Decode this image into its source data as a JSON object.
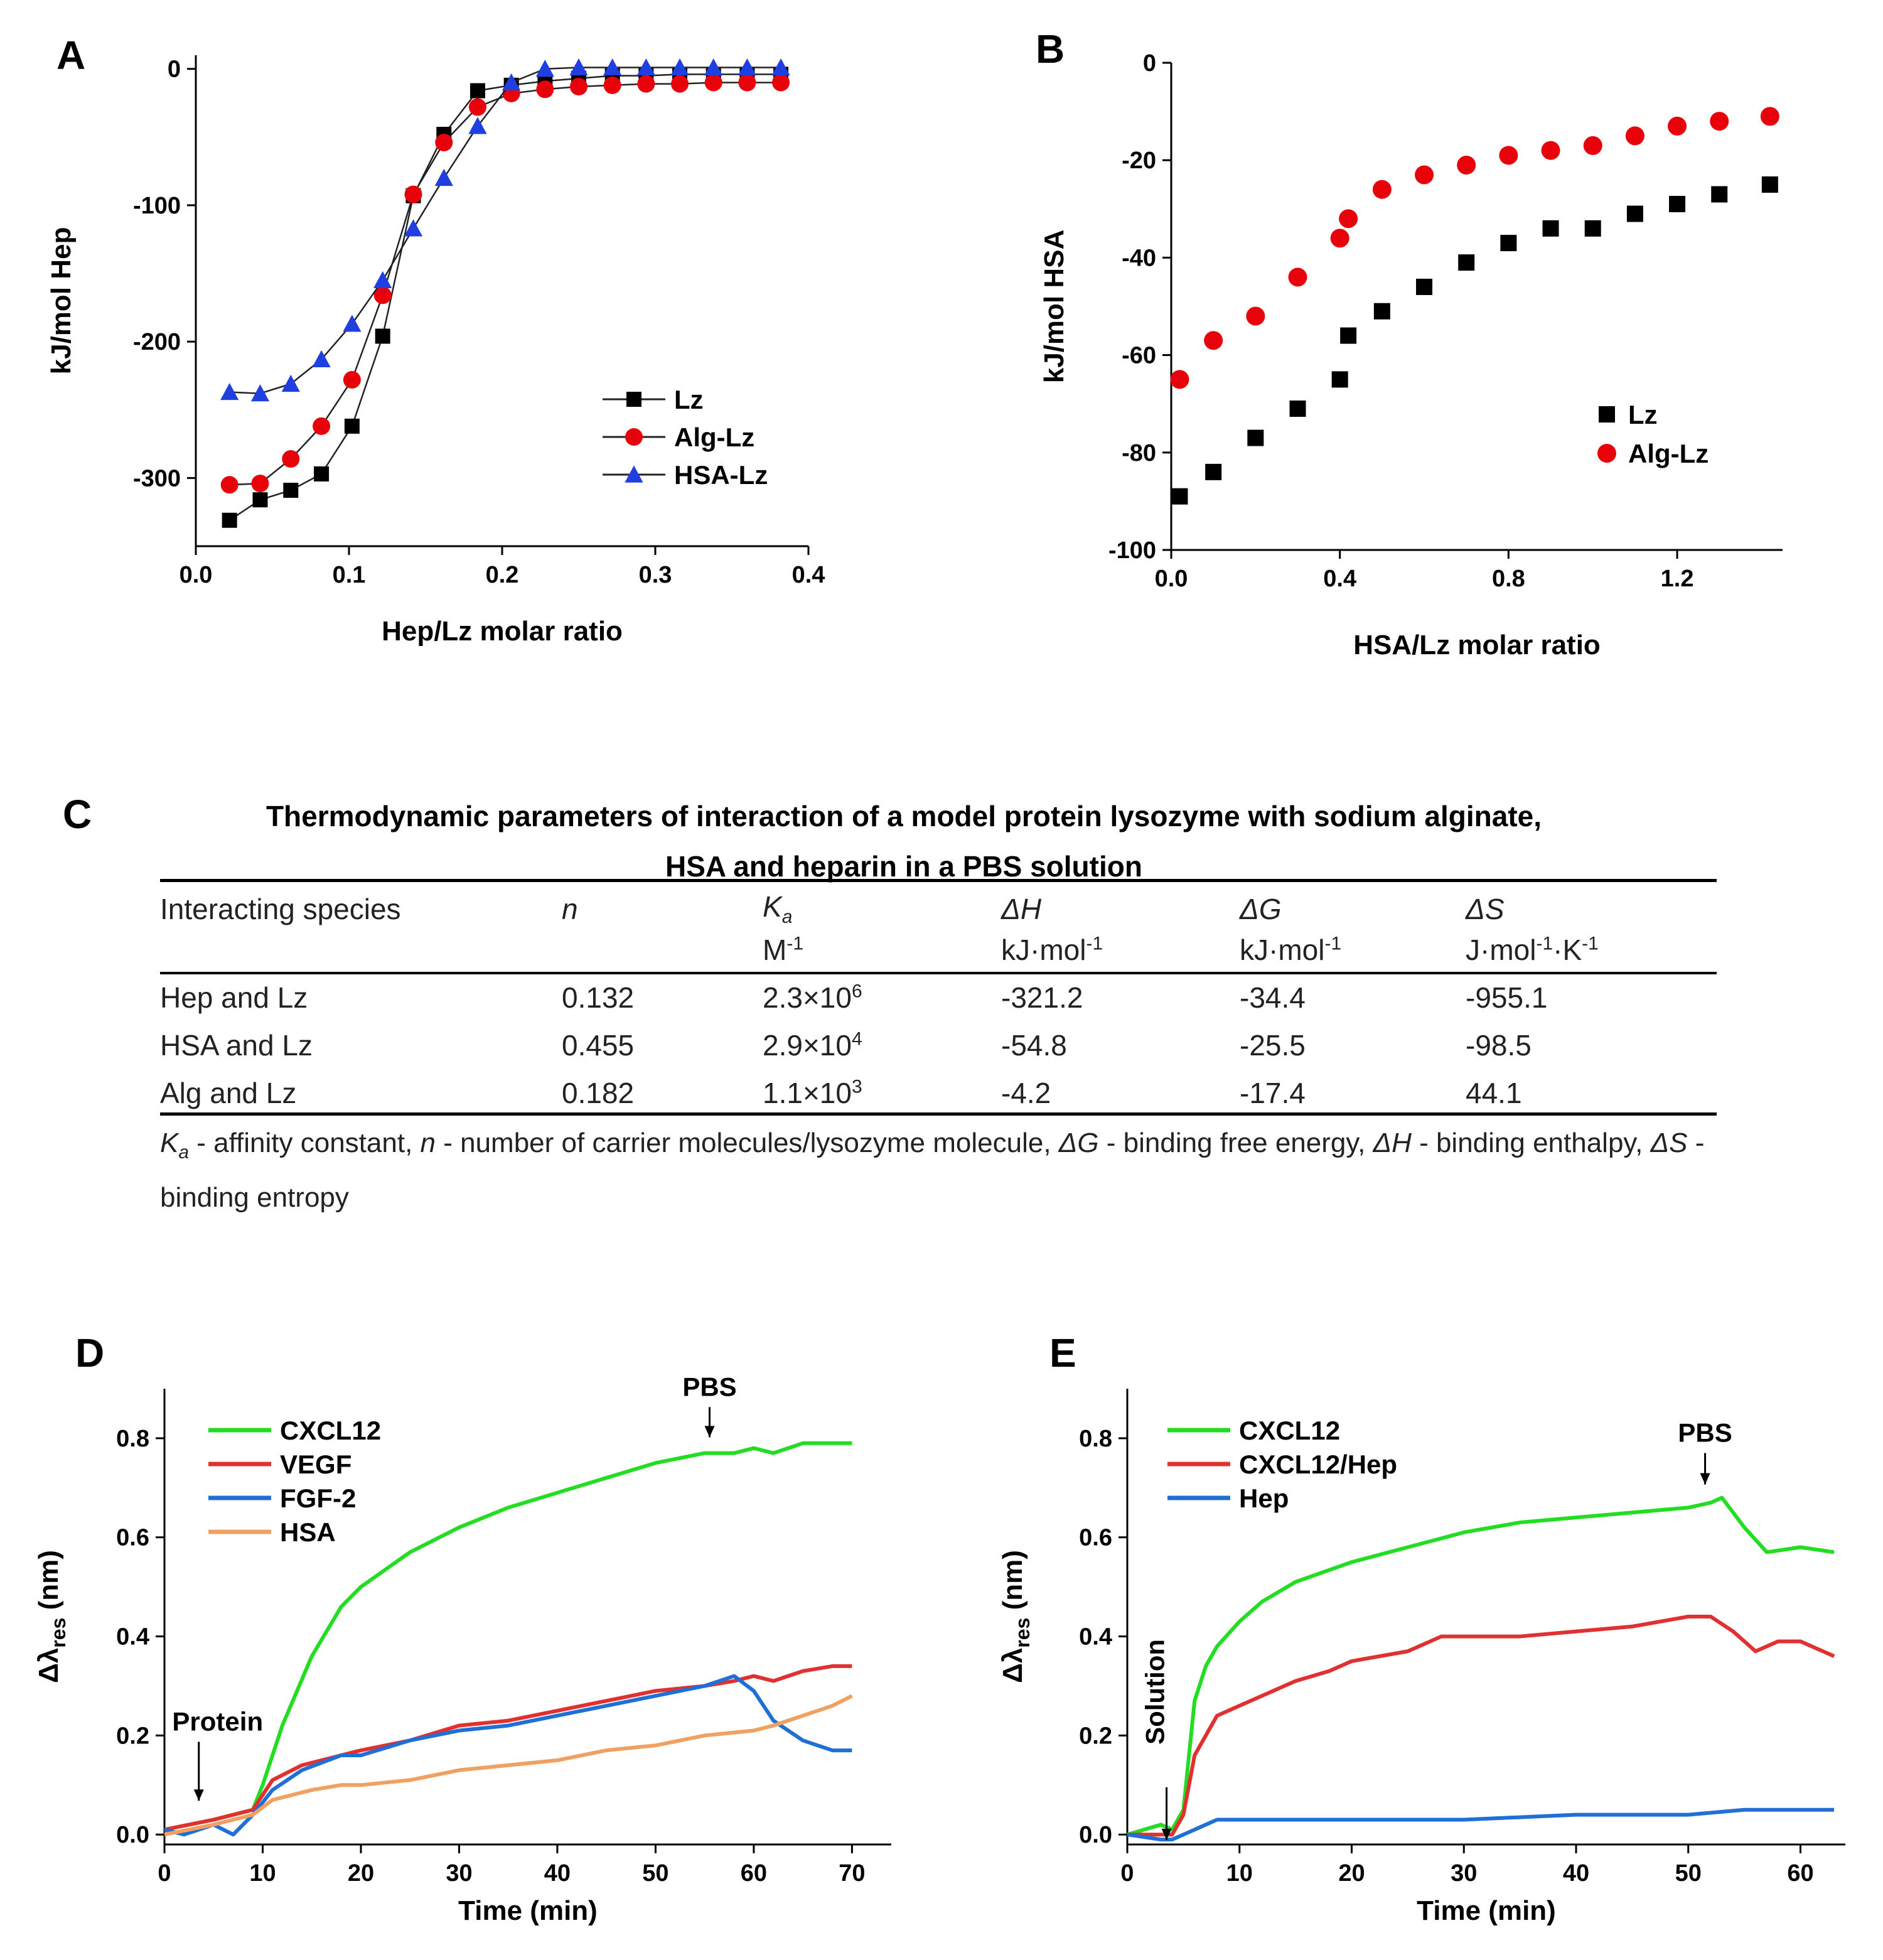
{
  "chart_data": [
    {
      "panel": "A",
      "type": "line",
      "xlabel": "Hep/Lz molar ratio",
      "ylabel": "kJ/mol Hep",
      "xlim": [
        0,
        0.4
      ],
      "ylim": [
        -350,
        10
      ],
      "xticks": [
        0.0,
        0.1,
        0.2,
        0.3,
        0.4
      ],
      "xtick_labels": [
        "0.0",
        "0.1",
        "0.2",
        "0.3",
        "0.4"
      ],
      "yticks": [
        0,
        -100,
        -200,
        -300
      ],
      "ytick_labels": [
        "0",
        "-100",
        "-200",
        "-300"
      ],
      "legend_position": "center-right",
      "series": [
        {
          "name": "Lz",
          "color": "#000000",
          "marker": "square",
          "x": [
            0.022,
            0.042,
            0.062,
            0.082,
            0.102,
            0.122,
            0.142,
            0.162,
            0.184,
            0.206,
            0.228,
            0.25,
            0.272,
            0.294,
            0.316,
            0.338,
            0.36,
            0.382
          ],
          "y": [
            -331,
            -316,
            -309,
            -297,
            -262,
            -196,
            -93,
            -48,
            -16,
            -12,
            -9,
            -7,
            -5,
            -5,
            -4,
            -4,
            -4,
            -4
          ]
        },
        {
          "name": "Alg-Lz",
          "color": "#e8000b",
          "marker": "circle",
          "x": [
            0.022,
            0.042,
            0.062,
            0.082,
            0.102,
            0.122,
            0.142,
            0.162,
            0.184,
            0.206,
            0.228,
            0.25,
            0.272,
            0.294,
            0.316,
            0.338,
            0.36,
            0.382
          ],
          "y": [
            -305,
            -304,
            -286,
            -262,
            -228,
            -166,
            -92,
            -54,
            -28,
            -18,
            -15,
            -13,
            -12,
            -11,
            -11,
            -10,
            -10,
            -10
          ]
        },
        {
          "name": "HSA-Lz",
          "color": "#1f3fe0",
          "marker": "triangle",
          "x": [
            0.022,
            0.042,
            0.062,
            0.082,
            0.102,
            0.122,
            0.142,
            0.162,
            0.184,
            0.206,
            0.228,
            0.25,
            0.272,
            0.294,
            0.316,
            0.338,
            0.36,
            0.382
          ],
          "y": [
            -237,
            -238,
            -231,
            -213,
            -187,
            -155,
            -117,
            -80,
            -42,
            -10,
            0,
            1,
            1,
            1,
            1,
            1,
            1,
            1
          ]
        }
      ]
    },
    {
      "panel": "B",
      "type": "scatter",
      "xlabel": "HSA/Lz molar ratio",
      "ylabel": "kJ/mol HSA",
      "xlim": [
        0,
        1.45
      ],
      "ylim": [
        -100,
        0
      ],
      "xticks": [
        0.0,
        0.4,
        0.8,
        1.2
      ],
      "xtick_labels": [
        "0.0",
        "0.4",
        "0.8",
        "1.2"
      ],
      "yticks": [
        0,
        -20,
        -40,
        -60,
        -80,
        -100
      ],
      "ytick_labels": [
        "0",
        "-20",
        "-40",
        "-60",
        "-80",
        "-100"
      ],
      "legend_position": "lower-right",
      "series": [
        {
          "name": "Lz",
          "color": "#000000",
          "marker": "square",
          "x": [
            0.02,
            0.1,
            0.2,
            0.3,
            0.4,
            0.42,
            0.5,
            0.6,
            0.7,
            0.8,
            0.9,
            1.0,
            1.1,
            1.2,
            1.3,
            1.42
          ],
          "y": [
            -89,
            -84,
            -77,
            -71,
            -65,
            -56,
            -51,
            -46,
            -41,
            -37,
            -34,
            -34,
            -31,
            -29,
            -27,
            -25
          ]
        },
        {
          "name": "Alg-Lz",
          "color": "#e8000b",
          "marker": "circle",
          "x": [
            0.02,
            0.1,
            0.2,
            0.3,
            0.4,
            0.42,
            0.5,
            0.6,
            0.7,
            0.8,
            0.9,
            1.0,
            1.1,
            1.2,
            1.3,
            1.42
          ],
          "y": [
            -65,
            -57,
            -52,
            -44,
            -36,
            -32,
            -26,
            -23,
            -21,
            -19,
            -18,
            -17,
            -15,
            -13,
            -12,
            -11
          ]
        }
      ]
    },
    {
      "panel": "D",
      "type": "line",
      "xlabel": "Time (min)",
      "ylabel": "Δλres (nm)",
      "xlim": [
        0,
        74
      ],
      "ylim": [
        -0.02,
        0.9
      ],
      "xticks": [
        0,
        10,
        20,
        30,
        40,
        50,
        60,
        70
      ],
      "xtick_labels": [
        "0",
        "10",
        "20",
        "30",
        "40",
        "50",
        "60",
        "70"
      ],
      "yticks": [
        0.0,
        0.2,
        0.4,
        0.6,
        0.8
      ],
      "ytick_labels": [
        "0.0",
        "0.2",
        "0.4",
        "0.6",
        "0.8"
      ],
      "legend_position": "top-left",
      "annotations": [
        {
          "text": "Protein",
          "x": 3.5,
          "y": 0.2
        },
        {
          "text": "PBS",
          "x": 55.5,
          "y": 0.84
        }
      ],
      "series": [
        {
          "name": "CXCL12",
          "color": "#22dd22",
          "x": [
            0,
            5,
            9,
            10,
            12,
            15,
            18,
            20,
            25,
            30,
            35,
            40,
            45,
            50,
            55,
            58,
            60,
            62,
            65,
            68,
            70
          ],
          "y": [
            0.01,
            0.03,
            0.05,
            0.1,
            0.22,
            0.36,
            0.46,
            0.5,
            0.57,
            0.62,
            0.66,
            0.69,
            0.72,
            0.75,
            0.77,
            0.77,
            0.78,
            0.77,
            0.79,
            0.79,
            0.79
          ]
        },
        {
          "name": "VEGF",
          "color": "#e03030",
          "x": [
            0,
            5,
            9,
            11,
            14,
            18,
            20,
            25,
            30,
            35,
            40,
            45,
            50,
            55,
            58,
            60,
            62,
            65,
            68,
            70
          ],
          "y": [
            0.01,
            0.03,
            0.05,
            0.11,
            0.14,
            0.16,
            0.17,
            0.19,
            0.22,
            0.23,
            0.25,
            0.27,
            0.29,
            0.3,
            0.31,
            0.32,
            0.31,
            0.33,
            0.34,
            0.34
          ]
        },
        {
          "name": "FGF-2",
          "color": "#1f6fd6",
          "x": [
            0,
            2,
            5,
            7,
            9,
            11,
            14,
            18,
            20,
            25,
            30,
            35,
            40,
            45,
            50,
            55,
            58,
            60,
            62,
            65,
            68,
            70
          ],
          "y": [
            0.01,
            0.0,
            0.02,
            0.0,
            0.04,
            0.09,
            0.13,
            0.16,
            0.16,
            0.19,
            0.21,
            0.22,
            0.24,
            0.26,
            0.28,
            0.3,
            0.32,
            0.29,
            0.23,
            0.19,
            0.17,
            0.17
          ]
        },
        {
          "name": "HSA",
          "color": "#f0a060",
          "x": [
            0,
            5,
            9,
            11,
            15,
            18,
            20,
            25,
            30,
            35,
            40,
            45,
            50,
            55,
            60,
            62,
            65,
            68,
            70
          ],
          "y": [
            0.0,
            0.02,
            0.04,
            0.07,
            0.09,
            0.1,
            0.1,
            0.11,
            0.13,
            0.14,
            0.15,
            0.17,
            0.18,
            0.2,
            0.21,
            0.22,
            0.24,
            0.26,
            0.28
          ]
        }
      ]
    },
    {
      "panel": "E",
      "type": "line",
      "xlabel": "Time (min)",
      "ylabel": "Δλres (nm)",
      "xlim": [
        0,
        64
      ],
      "ylim": [
        -0.02,
        0.9
      ],
      "xticks": [
        0,
        10,
        20,
        30,
        40,
        50,
        60
      ],
      "xtick_labels": [
        "0",
        "10",
        "20",
        "30",
        "40",
        "50",
        "60"
      ],
      "yticks": [
        0.0,
        0.2,
        0.4,
        0.6,
        0.8
      ],
      "ytick_labels": [
        "0.0",
        "0.2",
        "0.4",
        "0.6",
        "0.8"
      ],
      "legend_position": "top-left",
      "annotations": [
        {
          "text": "Solution",
          "x": 3.5,
          "y": 0.25
        },
        {
          "text": "PBS",
          "x": 51.5,
          "y": 0.76
        }
      ],
      "series": [
        {
          "name": "CXCL12",
          "color": "#22dd22",
          "x": [
            0,
            3,
            4,
            5,
            6,
            7,
            8,
            10,
            12,
            15,
            20,
            25,
            30,
            35,
            40,
            45,
            50,
            52,
            53,
            55,
            57,
            60,
            63
          ],
          "y": [
            0.0,
            0.02,
            0.01,
            0.05,
            0.27,
            0.34,
            0.38,
            0.43,
            0.47,
            0.51,
            0.55,
            0.58,
            0.61,
            0.63,
            0.64,
            0.65,
            0.66,
            0.67,
            0.68,
            0.62,
            0.57,
            0.58,
            0.57
          ]
        },
        {
          "name": "CXCL12/Hep",
          "color": "#e03030",
          "x": [
            0,
            3,
            4,
            5,
            6,
            7,
            8,
            10,
            12,
            15,
            18,
            20,
            25,
            28,
            30,
            35,
            40,
            45,
            50,
            52,
            54,
            56,
            58,
            60,
            63
          ],
          "y": [
            0.0,
            0.0,
            0.0,
            0.04,
            0.16,
            0.2,
            0.24,
            0.26,
            0.28,
            0.31,
            0.33,
            0.35,
            0.37,
            0.4,
            0.4,
            0.4,
            0.41,
            0.42,
            0.44,
            0.44,
            0.41,
            0.37,
            0.39,
            0.39,
            0.36
          ]
        },
        {
          "name": "Hep",
          "color": "#1f6fd6",
          "x": [
            0,
            3,
            4,
            5,
            6,
            8,
            10,
            15,
            20,
            30,
            40,
            50,
            55,
            60,
            63
          ],
          "y": [
            0.0,
            -0.01,
            -0.01,
            0.0,
            0.01,
            0.03,
            0.03,
            0.03,
            0.03,
            0.03,
            0.04,
            0.04,
            0.05,
            0.05,
            0.05
          ]
        }
      ]
    }
  ],
  "labels": {
    "A": "A",
    "B": "B",
    "C": "C",
    "D": "D",
    "E": "E"
  },
  "table": {
    "title_line1": "Thermodynamic parameters of interaction of a model protein lysozyme with sodium alginate,",
    "title_line2": "HSA and heparin in a PBS solution",
    "headers": [
      {
        "symbol": "Interacting species",
        "unit": ""
      },
      {
        "symbol": "n",
        "unit": ""
      },
      {
        "symbol": "Ka",
        "unit": "M-1"
      },
      {
        "symbol": "ΔH",
        "unit": "kJ·mol-1"
      },
      {
        "symbol": "ΔG",
        "unit": "kJ·mol-1"
      },
      {
        "symbol": "ΔS",
        "unit": "J·mol-1·K-1"
      }
    ],
    "rows": [
      [
        "Hep  and Lz",
        "0.132",
        "2.3×10^6",
        "-321.2",
        "-34.4",
        "-955.1"
      ],
      [
        "HSA and Lz",
        "0.455",
        "2.9×10^4",
        "-54.8",
        "-25.5",
        "-98.5"
      ],
      [
        "Alg  and Lz",
        "0.182",
        "1.1×10^3",
        "-4.2",
        "-17.4",
        "44.1"
      ]
    ],
    "footnote": "Ka - affinity constant, n - number of carrier molecules/lysozyme molecule, ΔG - binding free energy, ΔH - binding enthalpy, ΔS - binding entropy"
  }
}
